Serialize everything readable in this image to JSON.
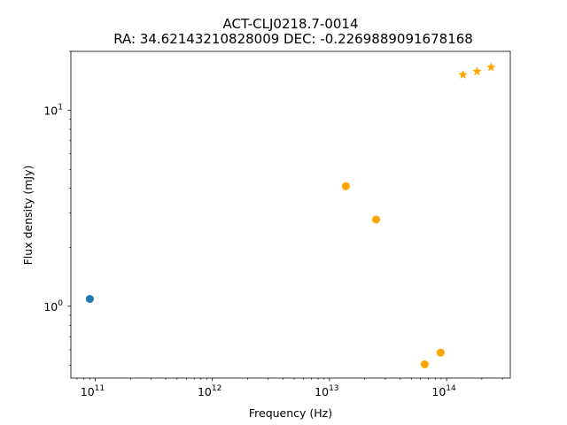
{
  "chart_data": {
    "type": "scatter",
    "title": "ACT-CLJ0218.7-0014",
    "subtitle": "RA: 34.62143210828009 DEC: -0.2269889091678168",
    "xlabel": "Frequency (Hz)",
    "ylabel": "Flux density (mJy)",
    "xscale": "log",
    "yscale": "log",
    "xlim": [
      62000000000.0,
      350000000000000.0
    ],
    "ylim": [
      0.43,
      20
    ],
    "grid": false,
    "x_tick_labels": [
      {
        "value": 100000000000.0,
        "base": "10",
        "exp": "11"
      },
      {
        "value": 1000000000000.0,
        "base": "10",
        "exp": "12"
      },
      {
        "value": 10000000000000.0,
        "base": "10",
        "exp": "13"
      },
      {
        "value": 100000000000000.0,
        "base": "10",
        "exp": "14"
      }
    ],
    "y_tick_labels": [
      {
        "value": 1,
        "base": "10",
        "exp": "0"
      },
      {
        "value": 10,
        "base": "10",
        "exp": "1"
      }
    ],
    "series": [
      {
        "color": "#1f77b4",
        "marker": "circle",
        "points": [
          {
            "x": 90000000000.0,
            "y": 1.09
          }
        ]
      },
      {
        "color": "#ffa500",
        "marker": "circle",
        "points": [
          {
            "x": 13800000000000.0,
            "y": 4.1
          },
          {
            "x": 25000000000000.0,
            "y": 2.77
          },
          {
            "x": 65000000000000.0,
            "y": 0.505
          },
          {
            "x": 89000000000000.0,
            "y": 0.58
          }
        ]
      },
      {
        "color": "#ffa500",
        "marker": "star",
        "points": [
          {
            "x": 138000000000000.0,
            "y": 15.2
          },
          {
            "x": 182000000000000.0,
            "y": 15.8
          },
          {
            "x": 240000000000000.0,
            "y": 16.6
          }
        ]
      }
    ]
  }
}
